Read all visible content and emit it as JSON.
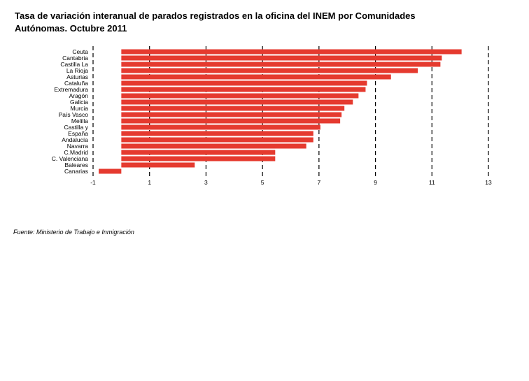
{
  "title": "Tasa de variación interanual de parados registrados en la oficina del INEM por Comunidades Autónomas. Octubre 2011",
  "source": "Fuente: Ministerio de Trabajo e Inmigración",
  "bar_color": "#e53a2f",
  "chart_data": {
    "type": "bar",
    "orientation": "horizontal",
    "categories": [
      "Ceuta",
      "Cantabria",
      "Castilla La",
      "La Rioja",
      "Asturias",
      "Cataluña",
      "Extremadura",
      "Aragón",
      "Galicia",
      "Murcia",
      "País Vasco",
      "Melilla",
      "Castilla y",
      "España",
      "Andalucía",
      "Navarra",
      "C.Madrid",
      "C. Valenciana",
      "Baleares",
      "Canarias"
    ],
    "values": [
      12.05,
      11.35,
      11.3,
      10.5,
      9.55,
      8.7,
      8.65,
      8.4,
      8.2,
      7.9,
      7.8,
      7.75,
      7.05,
      6.8,
      6.8,
      6.55,
      5.45,
      5.45,
      2.6,
      -0.8
    ],
    "xlim": [
      -1,
      13
    ],
    "xticks": [
      -1,
      1,
      3,
      5,
      7,
      9,
      11,
      13
    ],
    "xlabel": "",
    "ylabel": "",
    "grid": "vertical dashed"
  }
}
